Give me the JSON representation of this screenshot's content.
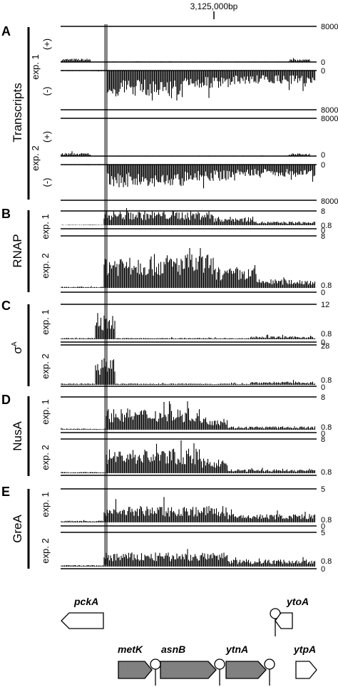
{
  "coordinate_label": "3,125,000bp",
  "colors": {
    "ink": "#000000",
    "highlight": "#8a8a8a",
    "gene_fill": "#808080"
  },
  "panels": [
    {
      "letter": "A",
      "group_label": "Transcripts",
      "tracks": [
        {
          "exp": "exp. 1",
          "strand": "(+)",
          "scale_top": "8000",
          "scale_bottom": "0"
        },
        {
          "exp": "exp. 1",
          "strand": "(-)",
          "scale_top": "0",
          "scale_bottom": "8000"
        },
        {
          "exp": "exp. 2",
          "strand": "(+)",
          "scale_top": "8000",
          "scale_bottom": "0"
        },
        {
          "exp": "exp. 2",
          "strand": "(-)",
          "scale_top": "0",
          "scale_bottom": "8000"
        }
      ]
    },
    {
      "letter": "B",
      "group_label": "RNAP",
      "tracks": [
        {
          "exp": "exp. 1",
          "scale_top": "8",
          "scale_mid": "0.8",
          "scale_bottom": "0"
        },
        {
          "exp": "exp. 2",
          "scale_top": "8",
          "scale_mid": "0.8",
          "scale_bottom": "0"
        }
      ]
    },
    {
      "letter": "C",
      "group_label": "σ",
      "group_sup": "A",
      "tracks": [
        {
          "exp": "exp. 1",
          "scale_top": "12",
          "scale_mid": "0.8",
          "scale_bottom": "0"
        },
        {
          "exp": "exp. 2",
          "scale_top": "28",
          "scale_mid": "0.8",
          "scale_bottom": "0"
        }
      ]
    },
    {
      "letter": "D",
      "group_label": "NusA",
      "tracks": [
        {
          "exp": "exp. 1",
          "scale_top": "8",
          "scale_mid": "0.8",
          "scale_bottom": "0"
        },
        {
          "exp": "exp. 2",
          "scale_top": "8",
          "scale_mid": "0.8",
          "scale_bottom": "0"
        }
      ]
    },
    {
      "letter": "E",
      "group_label": "GreA",
      "tracks": [
        {
          "exp": "exp. 1",
          "scale_top": "5",
          "scale_mid": "0.8",
          "scale_bottom": "0"
        },
        {
          "exp": "exp. 2",
          "scale_top": "5",
          "scale_mid": "0.8",
          "scale_bottom": "0"
        }
      ]
    }
  ],
  "genes": [
    {
      "name": "pckA",
      "strand": "minus",
      "fill": "white"
    },
    {
      "name": "ytoA",
      "strand": "minus",
      "fill": "white",
      "terminator": true
    },
    {
      "name": "metK",
      "strand": "plus",
      "fill": "gray",
      "terminator": true
    },
    {
      "name": "asnB",
      "strand": "plus",
      "fill": "gray",
      "terminator": true
    },
    {
      "name": "ytnA",
      "strand": "plus",
      "fill": "gray",
      "terminator": true
    },
    {
      "name": "ytpA",
      "strand": "plus",
      "fill": "white"
    }
  ]
}
